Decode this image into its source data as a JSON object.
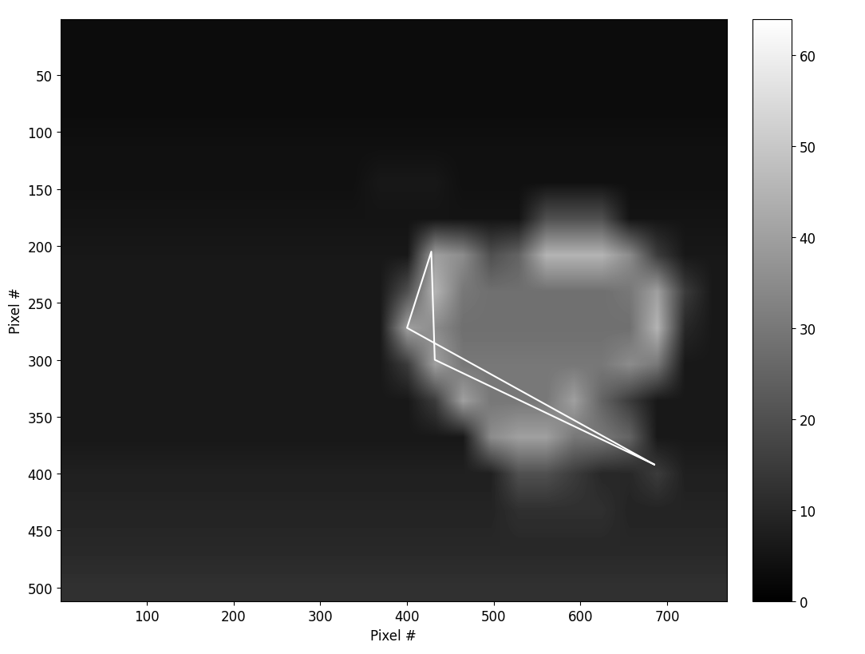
{
  "chart_data": {
    "type": "heatmap",
    "xlabel": "Pixel #",
    "ylabel": "Pixel #",
    "xlim": [
      0.5,
      768.5
    ],
    "ylim": [
      512.5,
      0.5
    ],
    "xticks": [
      100,
      200,
      300,
      400,
      500,
      600,
      700
    ],
    "yticks": [
      50,
      100,
      150,
      200,
      250,
      300,
      350,
      400,
      450,
      500
    ],
    "color": "gray",
    "colorbar_range": [
      0,
      64
    ],
    "colorbar_ticks": [
      0,
      10,
      20,
      30,
      40,
      50,
      60
    ],
    "cells": [
      [
        3,
        3,
        3,
        3,
        3,
        3,
        3,
        3,
        3,
        3,
        3,
        3,
        3,
        3,
        3,
        3,
        3,
        3,
        3,
        3,
        3,
        3,
        3,
        3
      ],
      [
        3,
        3,
        3,
        3,
        3,
        3,
        3,
        3,
        3,
        3,
        3,
        3,
        3,
        3,
        3,
        3,
        3,
        3,
        3,
        3,
        3,
        3,
        3,
        3
      ],
      [
        3,
        3,
        3,
        3,
        3,
        3,
        3,
        3,
        3,
        3,
        3,
        3,
        3,
        3,
        3,
        3,
        3,
        3,
        3,
        3,
        3,
        3,
        3,
        3
      ],
      [
        4,
        4,
        4,
        4,
        4,
        4,
        4,
        4,
        4,
        4,
        4,
        4,
        4,
        4,
        4,
        4,
        4,
        4,
        4,
        4,
        4,
        4,
        4,
        4
      ],
      [
        4,
        4,
        4,
        4,
        4,
        4,
        4,
        4,
        4,
        4,
        4,
        6,
        6,
        6,
        4,
        4,
        4,
        4,
        4,
        4,
        4,
        4,
        4,
        4
      ],
      [
        5,
        5,
        5,
        5,
        5,
        5,
        5,
        5,
        5,
        5,
        5,
        5,
        5,
        5,
        5,
        5,
        5,
        20,
        20,
        20,
        5,
        5,
        5,
        5
      ],
      [
        6,
        6,
        6,
        6,
        6,
        6,
        6,
        6,
        6,
        6,
        6,
        6,
        6,
        40,
        35,
        20,
        25,
        45,
        45,
        45,
        35,
        15,
        6,
        6
      ],
      [
        6,
        6,
        6,
        6,
        6,
        6,
        6,
        6,
        6,
        6,
        6,
        6,
        20,
        45,
        30,
        28,
        28,
        28,
        28,
        28,
        30,
        40,
        15,
        6
      ],
      [
        6,
        6,
        6,
        6,
        6,
        6,
        6,
        6,
        6,
        6,
        6,
        6,
        40,
        35,
        28,
        28,
        28,
        28,
        28,
        28,
        28,
        45,
        10,
        6
      ],
      [
        6,
        6,
        6,
        6,
        6,
        6,
        6,
        6,
        6,
        6,
        6,
        6,
        15,
        40,
        30,
        30,
        30,
        30,
        30,
        30,
        35,
        30,
        6,
        6
      ],
      [
        6,
        6,
        6,
        6,
        6,
        6,
        6,
        6,
        6,
        6,
        6,
        6,
        6,
        15,
        40,
        30,
        30,
        30,
        40,
        25,
        15,
        6,
        6,
        6
      ],
      [
        6,
        6,
        6,
        6,
        6,
        6,
        6,
        6,
        6,
        6,
        6,
        6,
        6,
        6,
        6,
        35,
        40,
        40,
        30,
        30,
        25,
        6,
        6,
        6
      ],
      [
        8,
        8,
        8,
        8,
        8,
        8,
        8,
        8,
        8,
        8,
        8,
        8,
        8,
        8,
        8,
        8,
        20,
        20,
        15,
        10,
        10,
        15,
        8,
        8
      ],
      [
        9,
        9,
        9,
        9,
        9,
        9,
        9,
        9,
        9,
        9,
        9,
        9,
        9,
        9,
        9,
        9,
        12,
        12,
        12,
        12,
        9,
        9,
        9,
        9
      ],
      [
        10,
        10,
        10,
        10,
        10,
        10,
        10,
        10,
        10,
        10,
        10,
        10,
        10,
        10,
        10,
        10,
        10,
        10,
        10,
        10,
        10,
        10,
        10,
        10
      ],
      [
        12,
        12,
        12,
        12,
        12,
        12,
        12,
        12,
        12,
        12,
        12,
        12,
        12,
        12,
        12,
        12,
        12,
        12,
        12,
        12,
        12,
        12,
        12,
        12
      ]
    ],
    "outline": {
      "x": [
        685,
        400,
        428,
        432,
        685
      ],
      "y": [
        392,
        272,
        205,
        300,
        392
      ],
      "color": "white"
    }
  }
}
